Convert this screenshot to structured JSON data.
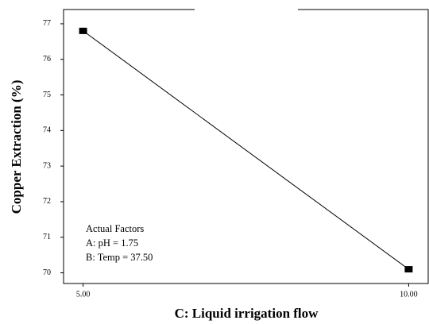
{
  "chart_data": {
    "type": "line",
    "x_label": "C: Liquid irrigation flow",
    "y_label": "Copper Extraction (%)",
    "annotations": [
      "Actual Factors",
      "A: pH = 1.75",
      "B: Temp = 37.50"
    ],
    "x": [
      5,
      10
    ],
    "values": [
      76.8,
      70.1
    ],
    "color": "#000000",
    "xlim": [
      4.7,
      10.3
    ],
    "xticks": [
      {
        "value": 5,
        "label": "5.00"
      },
      {
        "value": 10,
        "label": "10.00"
      }
    ],
    "ylim": [
      69.7,
      77.4
    ],
    "yticks": [
      70,
      71,
      72,
      73,
      74,
      75,
      76,
      77
    ],
    "grid": false
  }
}
